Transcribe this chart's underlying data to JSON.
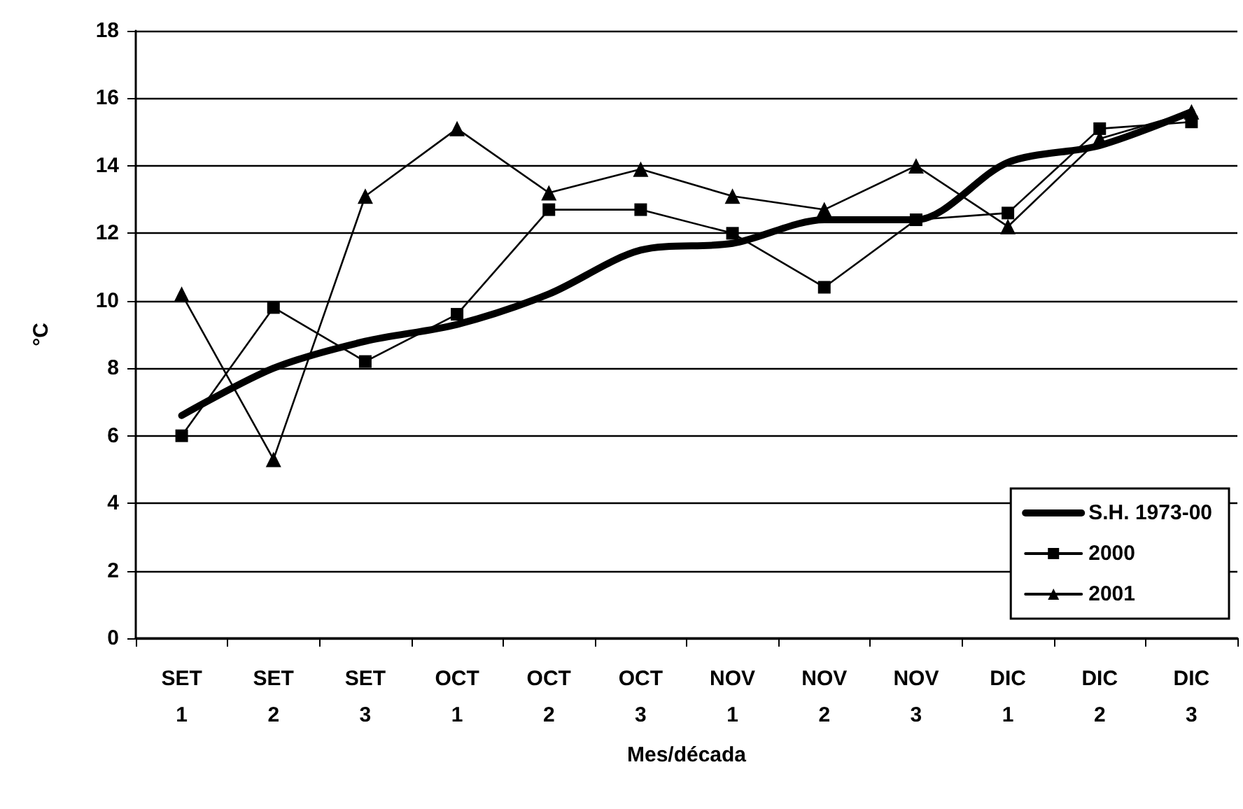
{
  "chart_data": {
    "type": "line",
    "xlabel": "Mes/década",
    "ylabel": "°C",
    "categories": [
      "SET 1",
      "SET 2",
      "SET 3",
      "OCT 1",
      "OCT 2",
      "OCT 3",
      "NOV 1",
      "NOV 2",
      "NOV 3",
      "DIC 1",
      "DIC 2",
      "DIC 3"
    ],
    "series": [
      {
        "name": "S.H. 1973-00",
        "color": "#000000",
        "marker": "none",
        "values": [
          6.6,
          8.0,
          8.8,
          9.3,
          10.2,
          11.5,
          11.7,
          12.4,
          12.4,
          14.1,
          14.6,
          15.6
        ]
      },
      {
        "name": "2000",
        "color": "#000000",
        "marker": "square",
        "values": [
          6.0,
          9.8,
          8.2,
          9.6,
          12.7,
          12.7,
          12.0,
          10.4,
          12.4,
          12.6,
          15.1,
          15.3
        ]
      },
      {
        "name": "2001",
        "color": "#000000",
        "marker": "triangle",
        "values": [
          10.2,
          5.3,
          13.1,
          15.1,
          13.2,
          13.9,
          13.1,
          12.7,
          14.0,
          12.2,
          14.8,
          15.6
        ]
      }
    ],
    "ylim": [
      0,
      18
    ],
    "yticks": [
      0,
      2,
      4,
      6,
      8,
      10,
      12,
      14,
      16,
      18
    ],
    "grid": "y",
    "legend": "bottom right",
    "line_style": "solid"
  }
}
